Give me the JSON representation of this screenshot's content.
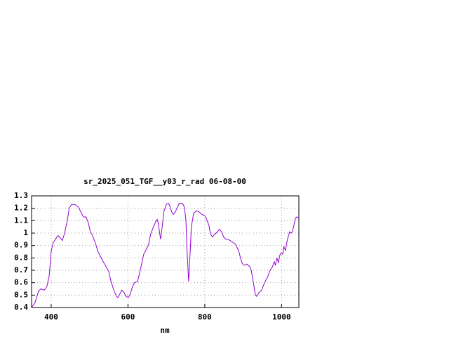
{
  "chart_data": {
    "type": "line",
    "title": "sr_2025_051_TGF__y03_r_rad 06-08-00",
    "x_label": "nm",
    "x": [
      349,
      358,
      367,
      373,
      382,
      389,
      395,
      400,
      405,
      413,
      418,
      424,
      429,
      435,
      442,
      447,
      453,
      462,
      471,
      479,
      484,
      491,
      497,
      502,
      508,
      515,
      522,
      532,
      541,
      550,
      555,
      563,
      570,
      574,
      579,
      584,
      590,
      595,
      601,
      606,
      612,
      617,
      625,
      632,
      641,
      648,
      654,
      659,
      665,
      672,
      676,
      679,
      683,
      685,
      689,
      694,
      700,
      705,
      709,
      714,
      718,
      723,
      729,
      734,
      742,
      747,
      751,
      754,
      758,
      762,
      765,
      771,
      778,
      785,
      793,
      800,
      805,
      811,
      815,
      820,
      826,
      833,
      838,
      844,
      849,
      855,
      860,
      866,
      871,
      880,
      888,
      893,
      897,
      902,
      910,
      917,
      921,
      926,
      932,
      935,
      941,
      948,
      953,
      959,
      964,
      970,
      975,
      981,
      984,
      988,
      992,
      995,
      999,
      1003,
      1006,
      1010,
      1014,
      1017,
      1021,
      1025,
      1028,
      1032,
      1036,
      1039,
      1045
    ],
    "series": [
      {
        "color": "#9400d3",
        "values": [
          0.4,
          0.44,
          0.53,
          0.55,
          0.54,
          0.57,
          0.66,
          0.85,
          0.92,
          0.96,
          0.98,
          0.96,
          0.94,
          1.0,
          1.1,
          1.2,
          1.23,
          1.23,
          1.21,
          1.16,
          1.13,
          1.13,
          1.08,
          1.01,
          0.98,
          0.92,
          0.85,
          0.79,
          0.74,
          0.69,
          0.62,
          0.54,
          0.49,
          0.48,
          0.51,
          0.54,
          0.52,
          0.49,
          0.48,
          0.51,
          0.57,
          0.6,
          0.61,
          0.7,
          0.83,
          0.87,
          0.91,
          0.99,
          1.04,
          1.09,
          1.11,
          1.08,
          0.99,
          0.95,
          1.05,
          1.18,
          1.23,
          1.24,
          1.22,
          1.17,
          1.15,
          1.17,
          1.21,
          1.24,
          1.24,
          1.21,
          1.1,
          0.85,
          0.61,
          0.85,
          1.05,
          1.16,
          1.18,
          1.17,
          1.15,
          1.14,
          1.11,
          1.06,
          0.99,
          0.97,
          0.99,
          1.01,
          1.03,
          1.01,
          0.97,
          0.95,
          0.95,
          0.94,
          0.93,
          0.91,
          0.86,
          0.8,
          0.76,
          0.74,
          0.75,
          0.73,
          0.7,
          0.61,
          0.5,
          0.49,
          0.52,
          0.54,
          0.58,
          0.62,
          0.65,
          0.7,
          0.72,
          0.77,
          0.74,
          0.8,
          0.76,
          0.82,
          0.84,
          0.83,
          0.89,
          0.86,
          0.93,
          0.97,
          1.01,
          1.0,
          1.01,
          1.06,
          1.12,
          1.13,
          1.12
        ]
      }
    ],
    "xlim": [
      349,
      1045
    ],
    "xticks": [
      400,
      600,
      800,
      1000
    ],
    "ylim": [
      0.4,
      1.3
    ],
    "yticks": [
      0.4,
      0.5,
      0.6,
      0.7,
      0.8,
      0.9,
      1,
      1.1,
      1.2,
      1.3
    ],
    "grid": true
  }
}
